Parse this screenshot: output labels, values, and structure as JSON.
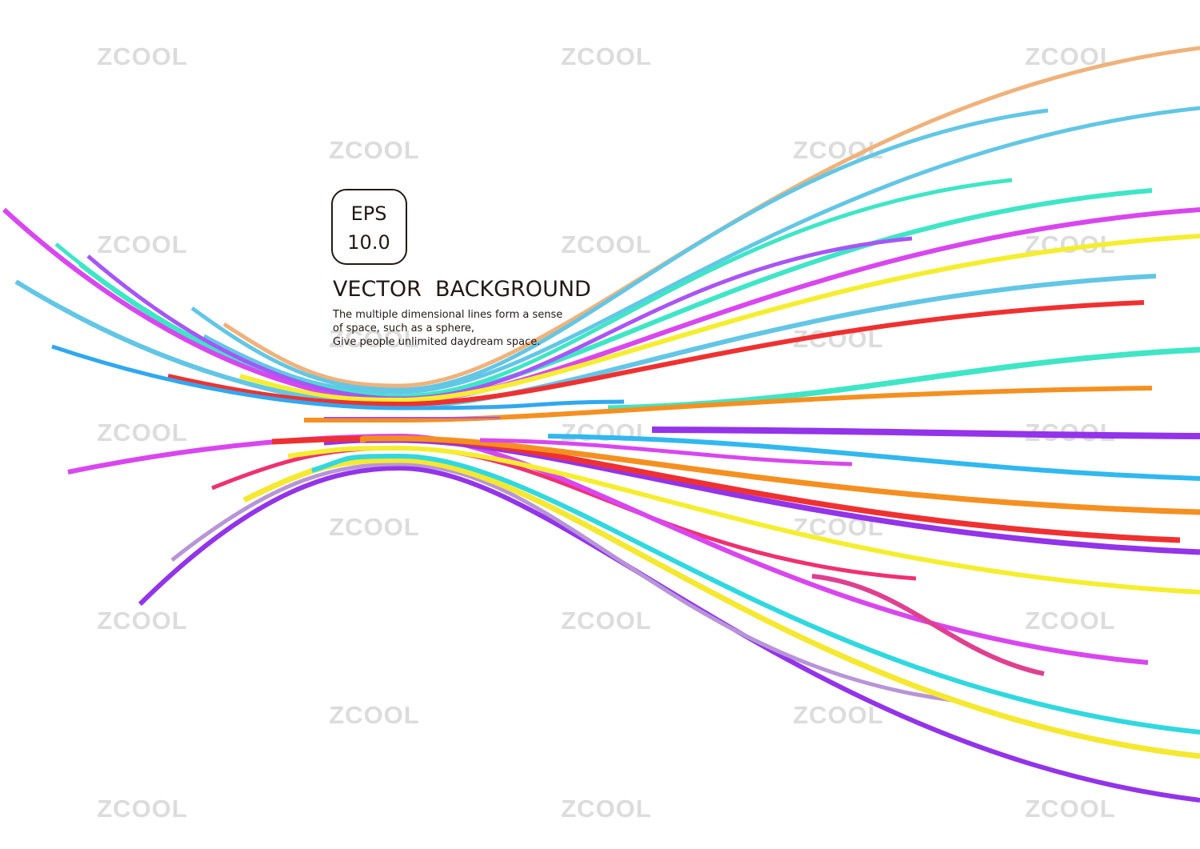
{
  "watermark": "ZCOOL",
  "badge": {
    "line1": "EPS",
    "line2": "10.0"
  },
  "title": "VECTOR  BACKGROUND",
  "description": [
    "The multiple dimensional lines form a sense",
    "of space, such as a sphere,",
    "Give people unlimited daydream space."
  ]
}
